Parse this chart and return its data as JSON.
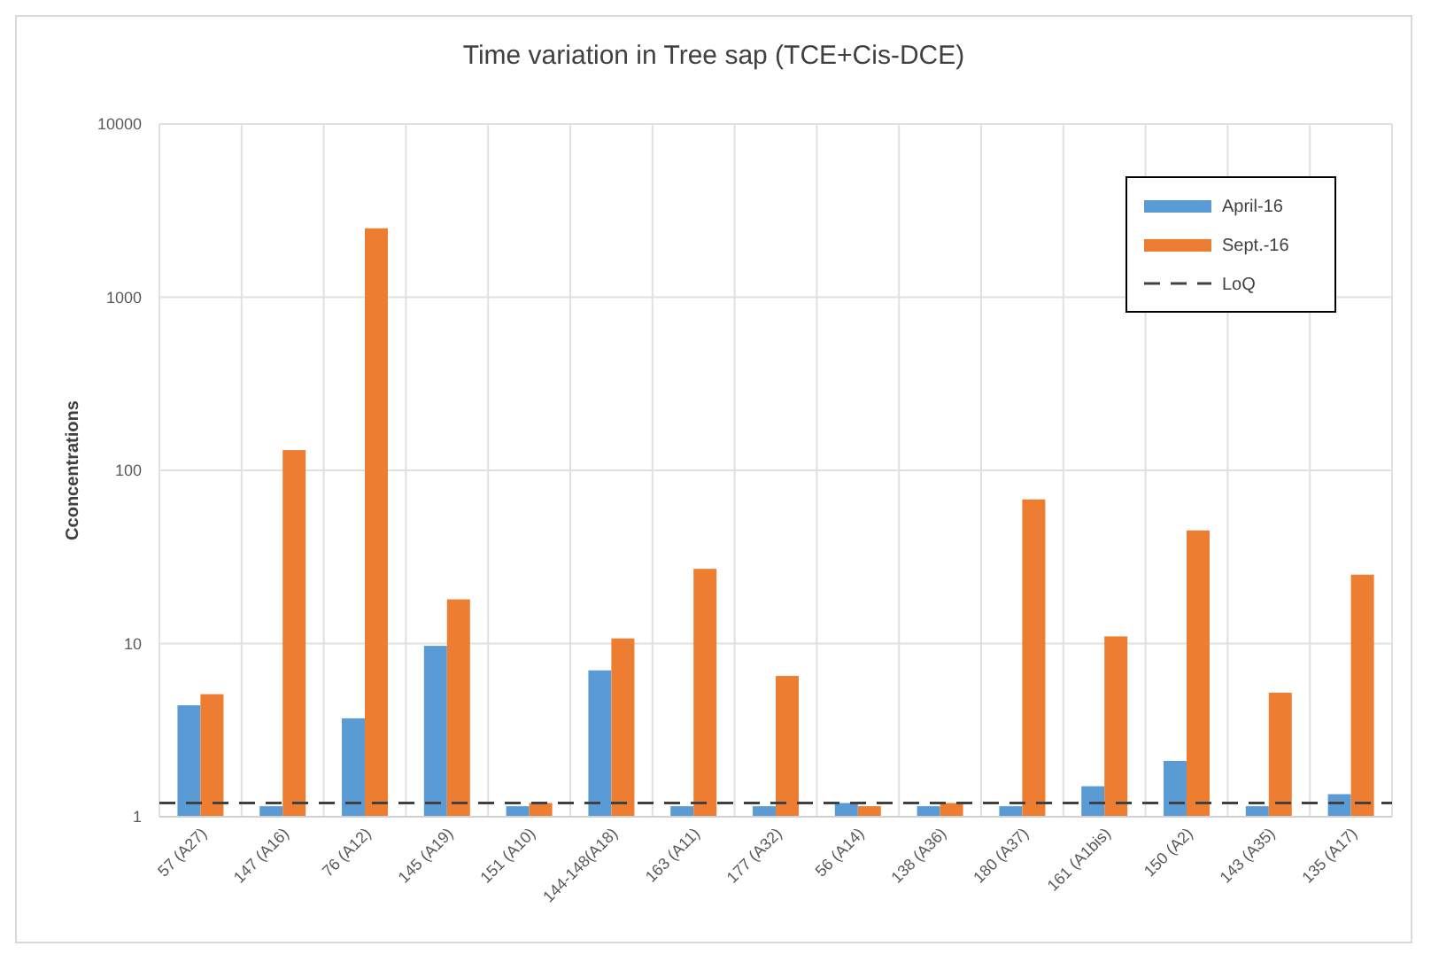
{
  "chart_data": {
    "type": "bar",
    "title": "Time variation in Tree sap (TCE+Cis-DCE)",
    "ylabel": "Cconcentrations",
    "categories": [
      "57 (A27)",
      "147 (A16)",
      "76 (A12)",
      "145 (A19)",
      "151 (A10)",
      "144-148(A18)",
      "163 (A11)",
      "177 (A32)",
      "56 (A14)",
      "138 (A36)",
      "180 (A37)",
      "161 (A1bis)",
      "150 (A2)",
      "143 (A35)",
      "135 (A17)"
    ],
    "series": [
      {
        "name": "April-16",
        "color": "#5b9bd5",
        "values": [
          4.4,
          1.15,
          3.7,
          9.7,
          1.15,
          7,
          1.15,
          1.15,
          1.2,
          1.15,
          1.15,
          1.5,
          2.1,
          1.15,
          1.35
        ]
      },
      {
        "name": "Sept.-16",
        "color": "#ed7d31",
        "values": [
          5.1,
          131,
          2500,
          18,
          1.2,
          10.7,
          27,
          6.5,
          1.15,
          1.2,
          68,
          11,
          45,
          5.2,
          25
        ]
      }
    ],
    "ref_lines": [
      {
        "axis": "y",
        "value": 1.2,
        "label": "LoQ",
        "color": "#404040",
        "line_style": "dashed"
      }
    ],
    "log": true,
    "ylim": [
      1,
      10000
    ],
    "yticks": [
      1,
      10,
      100,
      1000,
      10000
    ],
    "grid": true,
    "legend": "top right"
  }
}
